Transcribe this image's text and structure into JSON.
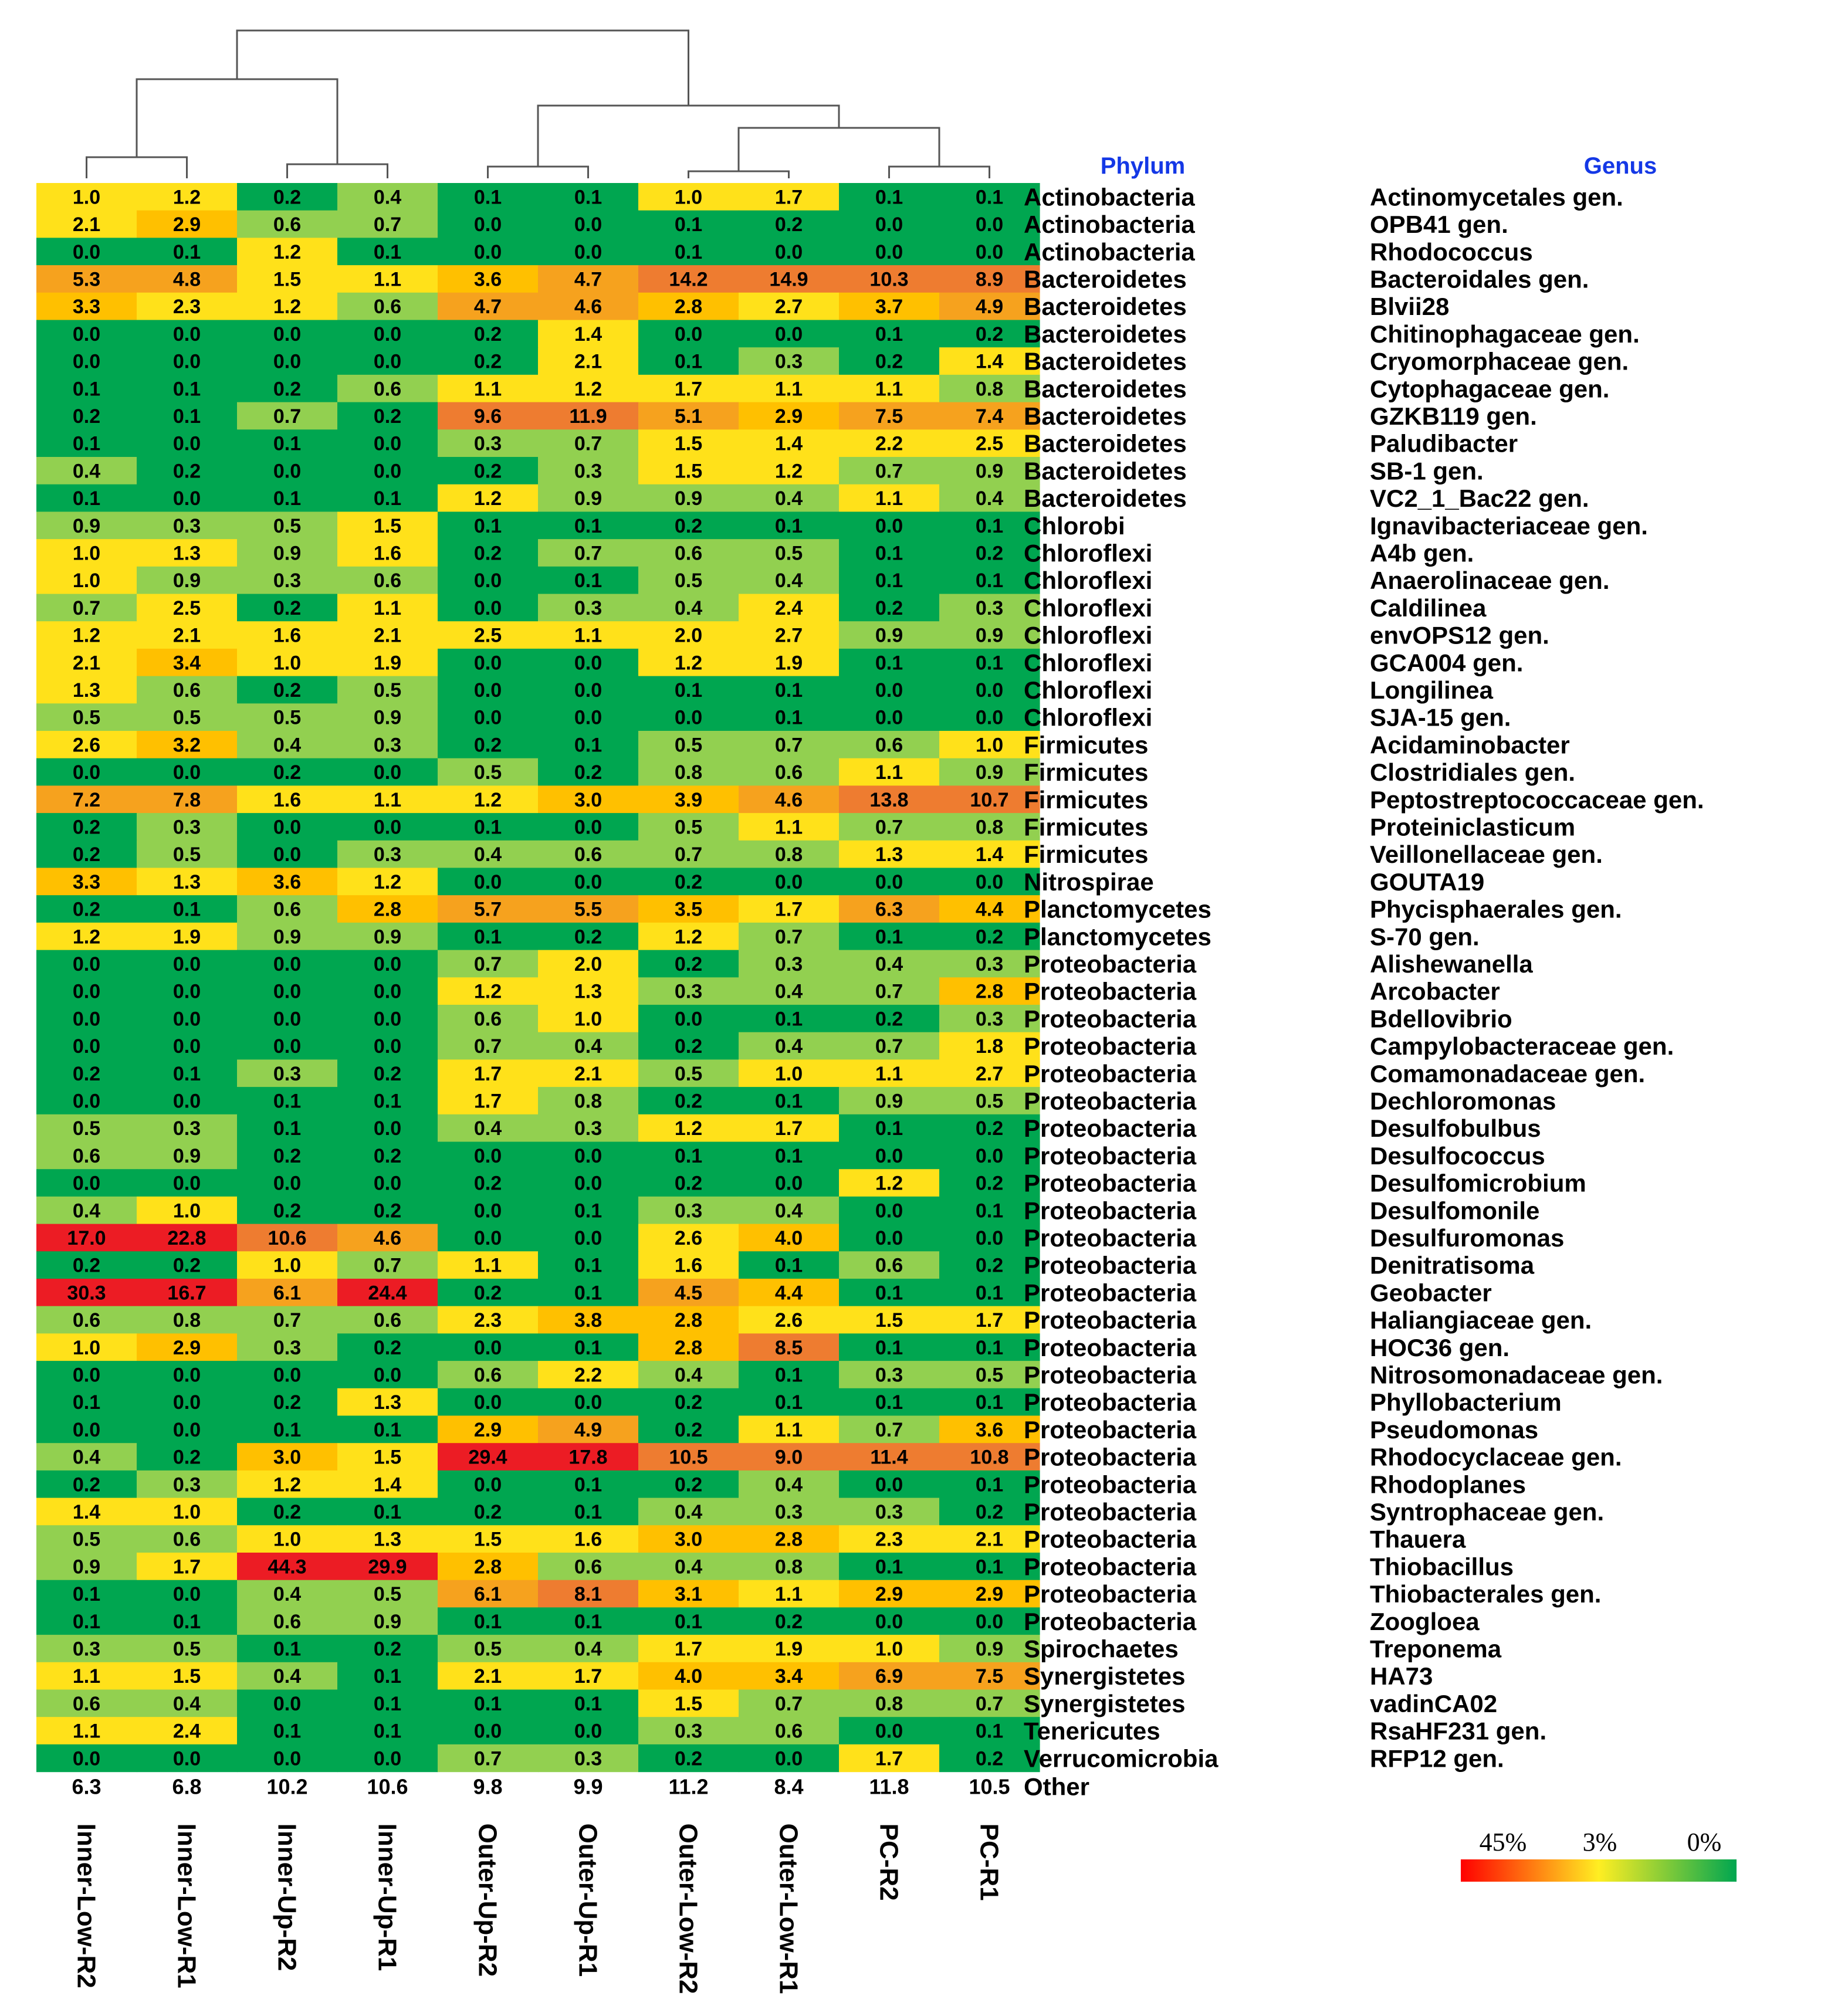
{
  "chart_data": {
    "type": "heatmap",
    "title": "",
    "phylum_header": "Phylum",
    "genus_header": "Genus",
    "columns": [
      "Inner-Low-R2",
      "Inner-Low-R1",
      "Inner-Up-R2",
      "Inner-Up-R1",
      "Outer-Up-R2",
      "Outer-Up-R1",
      "Outer-Low-R2",
      "Outer-Low-R1",
      "PC-R2",
      "PC-R1"
    ],
    "rows": [
      {
        "phylum": "Actinobacteria",
        "genus": "Actinomycetales gen.",
        "values": [
          1.0,
          1.2,
          0.2,
          0.4,
          0.1,
          0.1,
          1.0,
          1.7,
          0.1,
          0.1
        ]
      },
      {
        "phylum": "Actinobacteria",
        "genus": "OPB41 gen.",
        "values": [
          2.1,
          2.9,
          0.6,
          0.7,
          0.0,
          0.0,
          0.1,
          0.2,
          0.0,
          0.0
        ]
      },
      {
        "phylum": "Actinobacteria",
        "genus": "Rhodococcus",
        "values": [
          0.0,
          0.1,
          1.2,
          0.1,
          0.0,
          0.0,
          0.1,
          0.0,
          0.0,
          0.0
        ]
      },
      {
        "phylum": "Bacteroidetes",
        "genus": "Bacteroidales gen.",
        "values": [
          5.3,
          4.8,
          1.5,
          1.1,
          3.6,
          4.7,
          14.2,
          14.9,
          10.3,
          8.9
        ]
      },
      {
        "phylum": "Bacteroidetes",
        "genus": "Blvii28",
        "values": [
          3.3,
          2.3,
          1.2,
          0.6,
          4.7,
          4.6,
          2.8,
          2.7,
          3.7,
          4.9
        ]
      },
      {
        "phylum": "Bacteroidetes",
        "genus": "Chitinophagaceae gen.",
        "values": [
          0.0,
          0.0,
          0.0,
          0.0,
          0.2,
          1.4,
          0.0,
          0.0,
          0.1,
          0.2
        ]
      },
      {
        "phylum": "Bacteroidetes",
        "genus": "Cryomorphaceae gen.",
        "values": [
          0.0,
          0.0,
          0.0,
          0.0,
          0.2,
          2.1,
          0.1,
          0.3,
          0.2,
          1.4
        ]
      },
      {
        "phylum": "Bacteroidetes",
        "genus": "Cytophagaceae gen.",
        "values": [
          0.1,
          0.1,
          0.2,
          0.6,
          1.1,
          1.2,
          1.7,
          1.1,
          1.1,
          0.8
        ]
      },
      {
        "phylum": "Bacteroidetes",
        "genus": "GZKB119 gen.",
        "values": [
          0.2,
          0.1,
          0.7,
          0.2,
          9.6,
          11.9,
          5.1,
          2.9,
          7.5,
          7.4
        ]
      },
      {
        "phylum": "Bacteroidetes",
        "genus": "Paludibacter",
        "values": [
          0.1,
          0.0,
          0.1,
          0.0,
          0.3,
          0.7,
          1.5,
          1.4,
          2.2,
          2.5
        ]
      },
      {
        "phylum": "Bacteroidetes",
        "genus": "SB-1 gen.",
        "values": [
          0.4,
          0.2,
          0.0,
          0.0,
          0.2,
          0.3,
          1.5,
          1.2,
          0.7,
          0.9
        ]
      },
      {
        "phylum": "Bacteroidetes",
        "genus": "VC2_1_Bac22 gen.",
        "values": [
          0.1,
          0.0,
          0.1,
          0.1,
          1.2,
          0.9,
          0.9,
          0.4,
          1.1,
          0.4
        ]
      },
      {
        "phylum": "Chlorobi",
        "genus": "Ignavibacteriaceae gen.",
        "values": [
          0.9,
          0.3,
          0.5,
          1.5,
          0.1,
          0.1,
          0.2,
          0.1,
          0.0,
          0.1
        ]
      },
      {
        "phylum": "Chloroflexi",
        "genus": "A4b gen.",
        "values": [
          1.0,
          1.3,
          0.9,
          1.6,
          0.2,
          0.7,
          0.6,
          0.5,
          0.1,
          0.2
        ]
      },
      {
        "phylum": "Chloroflexi",
        "genus": "Anaerolinaceae gen.",
        "values": [
          1.0,
          0.9,
          0.3,
          0.6,
          0.0,
          0.1,
          0.5,
          0.4,
          0.1,
          0.1
        ]
      },
      {
        "phylum": "Chloroflexi",
        "genus": "Caldilinea",
        "values": [
          0.7,
          2.5,
          0.2,
          1.1,
          0.0,
          0.3,
          0.4,
          2.4,
          0.2,
          0.3
        ]
      },
      {
        "phylum": "Chloroflexi",
        "genus": "envOPS12 gen.",
        "values": [
          1.2,
          2.1,
          1.6,
          2.1,
          2.5,
          1.1,
          2.0,
          2.7,
          0.9,
          0.9
        ]
      },
      {
        "phylum": "Chloroflexi",
        "genus": "GCA004 gen.",
        "values": [
          2.1,
          3.4,
          1.0,
          1.9,
          0.0,
          0.0,
          1.2,
          1.9,
          0.1,
          0.1
        ]
      },
      {
        "phylum": "Chloroflexi",
        "genus": "Longilinea",
        "values": [
          1.3,
          0.6,
          0.2,
          0.5,
          0.0,
          0.0,
          0.1,
          0.1,
          0.0,
          0.0
        ]
      },
      {
        "phylum": "Chloroflexi",
        "genus": "SJA-15 gen.",
        "values": [
          0.5,
          0.5,
          0.5,
          0.9,
          0.0,
          0.0,
          0.0,
          0.1,
          0.0,
          0.0
        ]
      },
      {
        "phylum": "Firmicutes",
        "genus": "Acidaminobacter",
        "values": [
          2.6,
          3.2,
          0.4,
          0.3,
          0.2,
          0.1,
          0.5,
          0.7,
          0.6,
          1.0
        ]
      },
      {
        "phylum": "Firmicutes",
        "genus": "Clostridiales gen.",
        "values": [
          0.0,
          0.0,
          0.2,
          0.0,
          0.5,
          0.2,
          0.8,
          0.6,
          1.1,
          0.9
        ]
      },
      {
        "phylum": "Firmicutes",
        "genus": "Peptostreptococcaceae gen.",
        "values": [
          7.2,
          7.8,
          1.6,
          1.1,
          1.2,
          3.0,
          3.9,
          4.6,
          13.8,
          10.7
        ]
      },
      {
        "phylum": "Firmicutes",
        "genus": "Proteiniclasticum",
        "values": [
          0.2,
          0.3,
          0.0,
          0.0,
          0.1,
          0.0,
          0.5,
          1.1,
          0.7,
          0.8
        ]
      },
      {
        "phylum": "Firmicutes",
        "genus": "Veillonellaceae gen.",
        "values": [
          0.2,
          0.5,
          0.0,
          0.3,
          0.4,
          0.6,
          0.7,
          0.8,
          1.3,
          1.4
        ]
      },
      {
        "phylum": "Nitrospirae",
        "genus": "GOUTA19",
        "values": [
          3.3,
          1.3,
          3.6,
          1.2,
          0.0,
          0.0,
          0.2,
          0.0,
          0.0,
          0.0
        ]
      },
      {
        "phylum": "Planctomycetes",
        "genus": "Phycisphaerales gen.",
        "values": [
          0.2,
          0.1,
          0.6,
          2.8,
          5.7,
          5.5,
          3.5,
          1.7,
          6.3,
          4.4
        ]
      },
      {
        "phylum": "Planctomycetes",
        "genus": "S-70 gen.",
        "values": [
          1.2,
          1.9,
          0.9,
          0.9,
          0.1,
          0.2,
          1.2,
          0.7,
          0.1,
          0.2
        ]
      },
      {
        "phylum": "Proteobacteria",
        "genus": "Alishewanella",
        "values": [
          0.0,
          0.0,
          0.0,
          0.0,
          0.7,
          2.0,
          0.2,
          0.3,
          0.4,
          0.3
        ]
      },
      {
        "phylum": "Proteobacteria",
        "genus": "Arcobacter",
        "values": [
          0.0,
          0.0,
          0.0,
          0.0,
          1.2,
          1.3,
          0.3,
          0.4,
          0.7,
          2.8
        ]
      },
      {
        "phylum": "Proteobacteria",
        "genus": "Bdellovibrio",
        "values": [
          0.0,
          0.0,
          0.0,
          0.0,
          0.6,
          1.0,
          0.0,
          0.1,
          0.2,
          0.3
        ]
      },
      {
        "phylum": "Proteobacteria",
        "genus": "Campylobacteraceae gen.",
        "values": [
          0.0,
          0.0,
          0.0,
          0.0,
          0.7,
          0.4,
          0.2,
          0.4,
          0.7,
          1.8
        ]
      },
      {
        "phylum": "Proteobacteria",
        "genus": "Comamonadaceae gen.",
        "values": [
          0.2,
          0.1,
          0.3,
          0.2,
          1.7,
          2.1,
          0.5,
          1.0,
          1.1,
          2.7
        ]
      },
      {
        "phylum": "Proteobacteria",
        "genus": "Dechloromonas",
        "values": [
          0.0,
          0.0,
          0.1,
          0.1,
          1.7,
          0.8,
          0.2,
          0.1,
          0.9,
          0.5
        ]
      },
      {
        "phylum": "Proteobacteria",
        "genus": "Desulfobulbus",
        "values": [
          0.5,
          0.3,
          0.1,
          0.0,
          0.4,
          0.3,
          1.2,
          1.7,
          0.1,
          0.2
        ]
      },
      {
        "phylum": "Proteobacteria",
        "genus": "Desulfococcus",
        "values": [
          0.6,
          0.9,
          0.2,
          0.2,
          0.0,
          0.0,
          0.1,
          0.1,
          0.0,
          0.0
        ]
      },
      {
        "phylum": "Proteobacteria",
        "genus": "Desulfomicrobium",
        "values": [
          0.0,
          0.0,
          0.0,
          0.0,
          0.2,
          0.0,
          0.2,
          0.0,
          1.2,
          0.2
        ]
      },
      {
        "phylum": "Proteobacteria",
        "genus": "Desulfomonile",
        "values": [
          0.4,
          1.0,
          0.2,
          0.2,
          0.0,
          0.1,
          0.3,
          0.4,
          0.0,
          0.1
        ]
      },
      {
        "phylum": "Proteobacteria",
        "genus": "Desulfuromonas",
        "values": [
          17.0,
          22.8,
          10.6,
          4.6,
          0.0,
          0.0,
          2.6,
          4.0,
          0.0,
          0.0
        ]
      },
      {
        "phylum": "Proteobacteria",
        "genus": "Denitratisoma",
        "values": [
          0.2,
          0.2,
          1.0,
          0.7,
          1.1,
          0.1,
          1.6,
          0.1,
          0.6,
          0.2
        ]
      },
      {
        "phylum": "Proteobacteria",
        "genus": "Geobacter",
        "values": [
          30.3,
          16.7,
          6.1,
          24.4,
          0.2,
          0.1,
          4.5,
          4.4,
          0.1,
          0.1
        ]
      },
      {
        "phylum": "Proteobacteria",
        "genus": "Haliangiaceae gen.",
        "values": [
          0.6,
          0.8,
          0.7,
          0.6,
          2.3,
          3.8,
          2.8,
          2.6,
          1.5,
          1.7
        ]
      },
      {
        "phylum": "Proteobacteria",
        "genus": "HOC36 gen.",
        "values": [
          1.0,
          2.9,
          0.3,
          0.2,
          0.0,
          0.1,
          2.8,
          8.5,
          0.1,
          0.1
        ]
      },
      {
        "phylum": "Proteobacteria",
        "genus": "Nitrosomonadaceae gen.",
        "values": [
          0.0,
          0.0,
          0.0,
          0.0,
          0.6,
          2.2,
          0.4,
          0.1,
          0.3,
          0.5
        ]
      },
      {
        "phylum": "Proteobacteria",
        "genus": "Phyllobacterium",
        "values": [
          0.1,
          0.0,
          0.2,
          1.3,
          0.0,
          0.0,
          0.2,
          0.1,
          0.1,
          0.1
        ]
      },
      {
        "phylum": "Proteobacteria",
        "genus": "Pseudomonas",
        "values": [
          0.0,
          0.0,
          0.1,
          0.1,
          2.9,
          4.9,
          0.2,
          1.1,
          0.7,
          3.6
        ]
      },
      {
        "phylum": "Proteobacteria",
        "genus": "Rhodocyclaceae gen.",
        "values": [
          0.4,
          0.2,
          3.0,
          1.5,
          29.4,
          17.8,
          10.5,
          9.0,
          11.4,
          10.8
        ]
      },
      {
        "phylum": "Proteobacteria",
        "genus": "Rhodoplanes",
        "values": [
          0.2,
          0.3,
          1.2,
          1.4,
          0.0,
          0.1,
          0.2,
          0.4,
          0.0,
          0.1
        ]
      },
      {
        "phylum": "Proteobacteria",
        "genus": "Syntrophaceae gen.",
        "values": [
          1.4,
          1.0,
          0.2,
          0.1,
          0.2,
          0.1,
          0.4,
          0.3,
          0.3,
          0.2
        ]
      },
      {
        "phylum": "Proteobacteria",
        "genus": "Thauera",
        "values": [
          0.5,
          0.6,
          1.0,
          1.3,
          1.5,
          1.6,
          3.0,
          2.8,
          2.3,
          2.1
        ]
      },
      {
        "phylum": "Proteobacteria",
        "genus": "Thiobacillus",
        "values": [
          0.9,
          1.7,
          44.3,
          29.9,
          2.8,
          0.6,
          0.4,
          0.8,
          0.1,
          0.1
        ]
      },
      {
        "phylum": "Proteobacteria",
        "genus": "Thiobacterales gen.",
        "values": [
          0.1,
          0.0,
          0.4,
          0.5,
          6.1,
          8.1,
          3.1,
          1.1,
          2.9,
          2.9
        ]
      },
      {
        "phylum": "Proteobacteria",
        "genus": "Zoogloea",
        "values": [
          0.1,
          0.1,
          0.6,
          0.9,
          0.1,
          0.1,
          0.1,
          0.2,
          0.0,
          0.0
        ]
      },
      {
        "phylum": "Spirochaetes",
        "genus": "Treponema",
        "values": [
          0.3,
          0.5,
          0.1,
          0.2,
          0.5,
          0.4,
          1.7,
          1.9,
          1.0,
          0.9
        ]
      },
      {
        "phylum": "Synergistetes",
        "genus": "HA73",
        "values": [
          1.1,
          1.5,
          0.4,
          0.1,
          2.1,
          1.7,
          4.0,
          3.4,
          6.9,
          7.5
        ]
      },
      {
        "phylum": "Synergistetes",
        "genus": "vadinCA02",
        "values": [
          0.6,
          0.4,
          0.0,
          0.1,
          0.1,
          0.1,
          1.5,
          0.7,
          0.8,
          0.7
        ]
      },
      {
        "phylum": "Tenericutes",
        "genus": "RsaHF231 gen.",
        "values": [
          1.1,
          2.4,
          0.1,
          0.1,
          0.0,
          0.0,
          0.3,
          0.6,
          0.0,
          0.1
        ]
      },
      {
        "phylum": "Verrucomicrobia",
        "genus": "RFP12 gen.",
        "values": [
          0.0,
          0.0,
          0.0,
          0.0,
          0.7,
          0.3,
          0.2,
          0.0,
          1.7,
          0.2
        ]
      }
    ],
    "other": {
      "label": "Other",
      "values": [
        "6.3",
        "6.8",
        "10.2",
        "10.6",
        "9.8",
        "9.9",
        "11.2",
        "8.4",
        "11.8",
        "10.5"
      ]
    },
    "legend": {
      "labels": [
        "45%",
        "3%",
        "0%"
      ],
      "colors": [
        "#ff0000",
        "#ffee22",
        "#00a650"
      ]
    },
    "dendrogram": "hierarchical clustering of the 10 samples",
    "colors": {
      "green": "#00a650",
      "light_green": "#92d050",
      "yellow": "#ffe11a",
      "gold": "#ffc000",
      "orange_light": "#f6a21e",
      "orange": "#ee7c30",
      "red": "#ec1c24",
      "header_blue": "#1438e6"
    }
  }
}
